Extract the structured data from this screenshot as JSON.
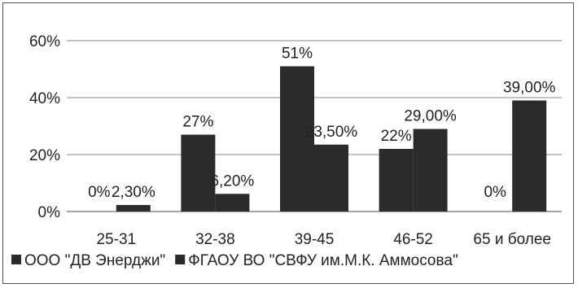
{
  "chart_data": {
    "type": "bar",
    "categories": [
      "25-31",
      "32-38",
      "39-45",
      "46-52",
      "65 и более"
    ],
    "series": [
      {
        "name": "ООО \"ДВ Энерджи\"",
        "values": [
          0,
          27,
          51,
          22,
          0
        ],
        "labels": [
          "0%",
          "27%",
          "51%",
          "22%",
          "0%"
        ],
        "color": "#2b2b2b"
      },
      {
        "name": "ФГАОУ ВО \"СВФУ им.М.К. Аммосова\"",
        "values": [
          2.3,
          6.2,
          23.5,
          29.0,
          39.0
        ],
        "labels": [
          "2,30%",
          "6,20%",
          "23,50%",
          "29,00%",
          "39,00%"
        ],
        "color": "#2b2b2b"
      }
    ],
    "ylim": [
      0,
      60
    ],
    "yticks": [
      0,
      20,
      40,
      60
    ],
    "ytick_labels": [
      "0%",
      "20%",
      "40%",
      "60%"
    ],
    "grid": true,
    "legend": "bottom"
  }
}
